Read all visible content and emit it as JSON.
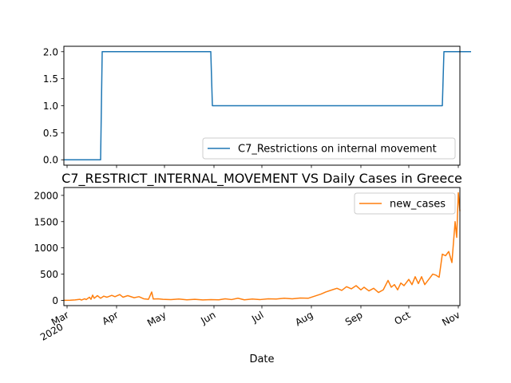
{
  "chart_data": [
    {
      "type": "line",
      "title": "",
      "xlabel": "",
      "ylabel": "",
      "ylim": [
        -0.1,
        2.1
      ],
      "yticks": [
        "0.0",
        "0.5",
        "1.0",
        "1.5",
        "2.0"
      ],
      "ytick_values": [
        0,
        0.5,
        1.0,
        1.5,
        2.0
      ],
      "legend_position": "lower-right",
      "grid": false,
      "series": [
        {
          "name": "C7_Restrictions on internal movement",
          "color": "#1f77b4",
          "points": [
            [
              "2020-02-28",
              0
            ],
            [
              "2020-03-22",
              0
            ],
            [
              "2020-03-23",
              2
            ],
            [
              "2020-05-30",
              2
            ],
            [
              "2020-05-31",
              1
            ],
            [
              "2020-10-22",
              1
            ],
            [
              "2020-10-23",
              2
            ],
            [
              "2020-11-09",
              2
            ]
          ]
        }
      ]
    },
    {
      "type": "line",
      "title": "C7_RESTRICT_INTERNAL_MOVEMENT VS Daily Cases in Greece",
      "xlabel": "Date",
      "ylabel": "",
      "ylim": [
        -100,
        2150
      ],
      "yticks": [
        "0",
        "500",
        "1000",
        "1500",
        "2000"
      ],
      "ytick_values": [
        0,
        500,
        1000,
        1500,
        2000
      ],
      "x_tick_labels": [
        {
          "date": "2020-03-01",
          "label": "Mar",
          "sub": "2020"
        },
        {
          "date": "2020-04-01",
          "label": "Apr"
        },
        {
          "date": "2020-05-01",
          "label": "May"
        },
        {
          "date": "2020-06-01",
          "label": "Jun"
        },
        {
          "date": "2020-07-01",
          "label": "Jul"
        },
        {
          "date": "2020-08-01",
          "label": "Aug"
        },
        {
          "date": "2020-09-01",
          "label": "Sep"
        },
        {
          "date": "2020-10-01",
          "label": "Oct"
        },
        {
          "date": "2020-11-01",
          "label": "Nov"
        }
      ],
      "legend_position": "top-right",
      "grid": false,
      "series": [
        {
          "name": "new_cases",
          "color": "#ff7f0e",
          "points": [
            [
              "2020-02-28",
              0
            ],
            [
              "2020-03-03",
              2
            ],
            [
              "2020-03-06",
              8
            ],
            [
              "2020-03-09",
              20
            ],
            [
              "2020-03-10",
              5
            ],
            [
              "2020-03-12",
              30
            ],
            [
              "2020-03-13",
              15
            ],
            [
              "2020-03-15",
              60
            ],
            [
              "2020-03-16",
              20
            ],
            [
              "2020-03-17",
              100
            ],
            [
              "2020-03-18",
              40
            ],
            [
              "2020-03-20",
              90
            ],
            [
              "2020-03-22",
              40
            ],
            [
              "2020-03-24",
              80
            ],
            [
              "2020-03-26",
              60
            ],
            [
              "2020-03-29",
              95
            ],
            [
              "2020-03-31",
              70
            ],
            [
              "2020-04-03",
              110
            ],
            [
              "2020-04-05",
              60
            ],
            [
              "2020-04-08",
              90
            ],
            [
              "2020-04-12",
              50
            ],
            [
              "2020-04-15",
              70
            ],
            [
              "2020-04-18",
              30
            ],
            [
              "2020-04-21",
              20
            ],
            [
              "2020-04-23",
              160
            ],
            [
              "2020-04-24",
              25
            ],
            [
              "2020-04-27",
              30
            ],
            [
              "2020-04-30",
              20
            ],
            [
              "2020-05-05",
              15
            ],
            [
              "2020-05-10",
              25
            ],
            [
              "2020-05-15",
              10
            ],
            [
              "2020-05-20",
              20
            ],
            [
              "2020-05-25",
              8
            ],
            [
              "2020-05-30",
              15
            ],
            [
              "2020-06-04",
              10
            ],
            [
              "2020-06-08",
              30
            ],
            [
              "2020-06-12",
              15
            ],
            [
              "2020-06-16",
              40
            ],
            [
              "2020-06-20",
              10
            ],
            [
              "2020-06-25",
              25
            ],
            [
              "2020-06-30",
              15
            ],
            [
              "2020-07-05",
              30
            ],
            [
              "2020-07-10",
              25
            ],
            [
              "2020-07-15",
              40
            ],
            [
              "2020-07-20",
              30
            ],
            [
              "2020-07-25",
              45
            ],
            [
              "2020-07-30",
              40
            ],
            [
              "2020-08-03",
              80
            ],
            [
              "2020-08-07",
              120
            ],
            [
              "2020-08-10",
              160
            ],
            [
              "2020-08-14",
              200
            ],
            [
              "2020-08-17",
              230
            ],
            [
              "2020-08-20",
              190
            ],
            [
              "2020-08-23",
              260
            ],
            [
              "2020-08-26",
              220
            ],
            [
              "2020-08-29",
              280
            ],
            [
              "2020-09-01",
              200
            ],
            [
              "2020-09-03",
              250
            ],
            [
              "2020-09-06",
              180
            ],
            [
              "2020-09-09",
              230
            ],
            [
              "2020-09-12",
              150
            ],
            [
              "2020-09-15",
              200
            ],
            [
              "2020-09-18",
              380
            ],
            [
              "2020-09-20",
              250
            ],
            [
              "2020-09-22",
              300
            ],
            [
              "2020-09-24",
              200
            ],
            [
              "2020-09-26",
              330
            ],
            [
              "2020-09-28",
              280
            ],
            [
              "2020-10-01",
              400
            ],
            [
              "2020-10-03",
              300
            ],
            [
              "2020-10-05",
              450
            ],
            [
              "2020-10-07",
              320
            ],
            [
              "2020-10-09",
              450
            ],
            [
              "2020-10-11",
              300
            ],
            [
              "2020-10-14",
              420
            ],
            [
              "2020-10-16",
              500
            ],
            [
              "2020-10-18",
              480
            ],
            [
              "2020-10-20",
              440
            ],
            [
              "2020-10-22",
              880
            ],
            [
              "2020-10-24",
              850
            ],
            [
              "2020-10-26",
              930
            ],
            [
              "2020-10-28",
              720
            ],
            [
              "2020-10-30",
              1500
            ],
            [
              "2020-10-31",
              1200
            ],
            [
              "2020-11-01",
              2050
            ],
            [
              "2020-11-02",
              1700
            ]
          ]
        }
      ]
    }
  ]
}
